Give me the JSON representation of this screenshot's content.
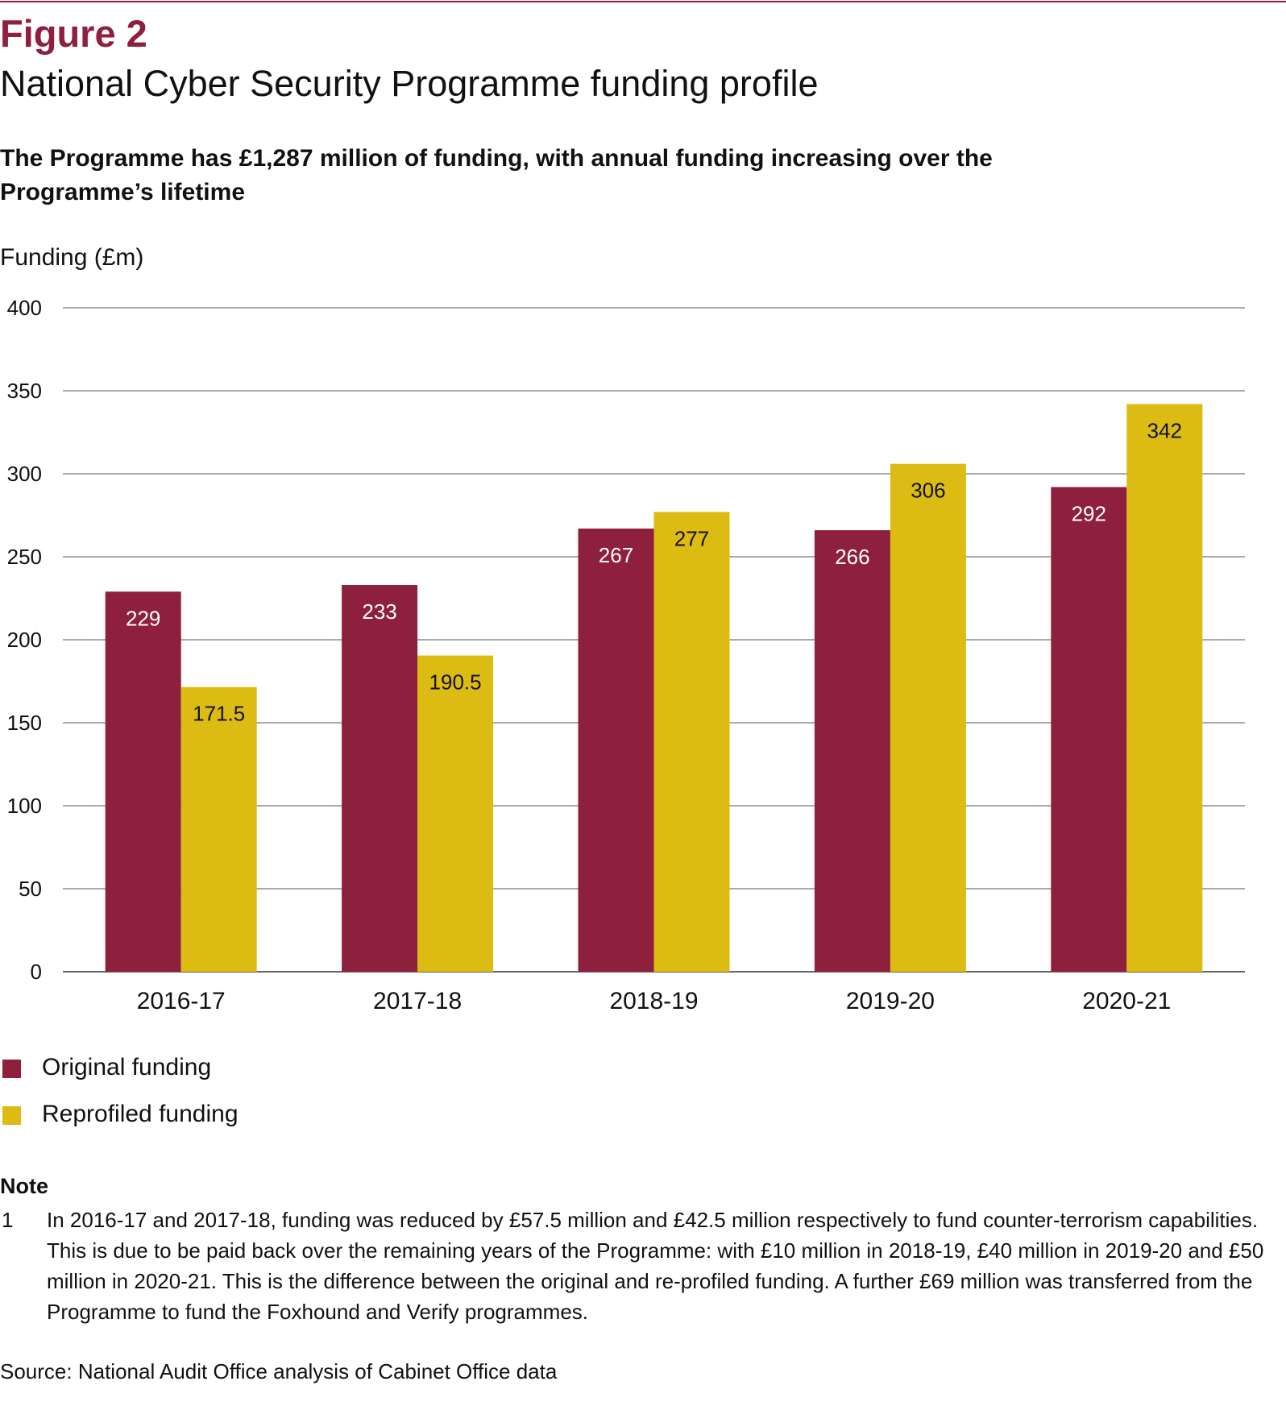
{
  "figure": {
    "label": "Figure 2",
    "title": "National Cyber Security Programme funding profile",
    "subtitle": "The Programme has £1,287 million of funding, with annual funding increasing over the Programme’s lifetime"
  },
  "chart_data": {
    "type": "bar",
    "ylabel": "Funding (£m)",
    "xlabel": "",
    "ylim": [
      0,
      400
    ],
    "yticks": [
      0,
      50,
      100,
      150,
      200,
      250,
      300,
      350,
      400
    ],
    "grid": true,
    "legend_position": "bottom-left",
    "categories": [
      "2016-17",
      "2017-18",
      "2018-19",
      "2019-20",
      "2020-21"
    ],
    "series": [
      {
        "name": "Original funding",
        "color": "#8e1f3d",
        "label_color": "#ffffff",
        "values": [
          229,
          233,
          267,
          266,
          292
        ],
        "labels": [
          "229",
          "233",
          "267",
          "266",
          "292"
        ]
      },
      {
        "name": "Reprofiled funding",
        "color": "#dcbb12",
        "label_color": "#111111",
        "values": [
          171.5,
          190.5,
          277,
          306,
          342
        ],
        "labels": [
          "171.5",
          "190.5",
          "277",
          "306",
          "342"
        ]
      }
    ]
  },
  "note": {
    "heading": "Note",
    "number": "1",
    "text": "In 2016-17 and 2017-18, funding was reduced by £57.5 million and £42.5 million respectively to fund counter-terrorism capabilities. This is due to be paid back over the remaining years of the Programme: with £10 million in 2018-19, £40 million in 2019-20 and £50 million in 2020-21. This is the difference between the original and re-profiled funding. A further £69 million was transferred from the Programme to fund the Foxhound and Verify programmes."
  },
  "source": "Source: National Audit Office analysis of Cabinet Office data"
}
